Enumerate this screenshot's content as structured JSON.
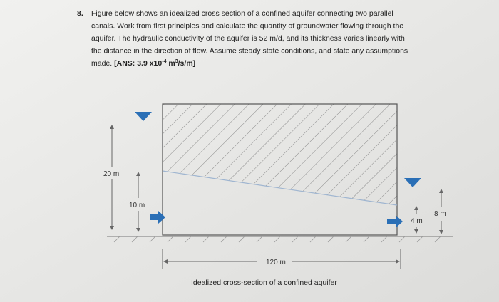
{
  "question": {
    "number": "8.",
    "lines": [
      "Figure below shows an idealized cross section of a confined aquifer connecting two parallel",
      "canals. Work from first principles and calculate the quantity of groundwater flowing through the",
      "aquifer. The hydraulic conductivity of the aquifer is 52 m/d, and its thickness varies linearly with",
      "the distance in the direction of flow. Assume steady state conditions, and state any assumptions",
      "made."
    ],
    "answer": {
      "prefix": "[ANS: 3.9 x10",
      "exp1": "-4",
      "unit": " m",
      "exp2": "3",
      "suffix": "/s/m]"
    }
  },
  "figure": {
    "labels": {
      "left_head": "20 m",
      "left_thickness": "10 m",
      "right_thickness": "4 m",
      "right_head": "8 m",
      "length": "120 m"
    },
    "caption": "Idealized cross-section of a confined aquifer"
  }
}
